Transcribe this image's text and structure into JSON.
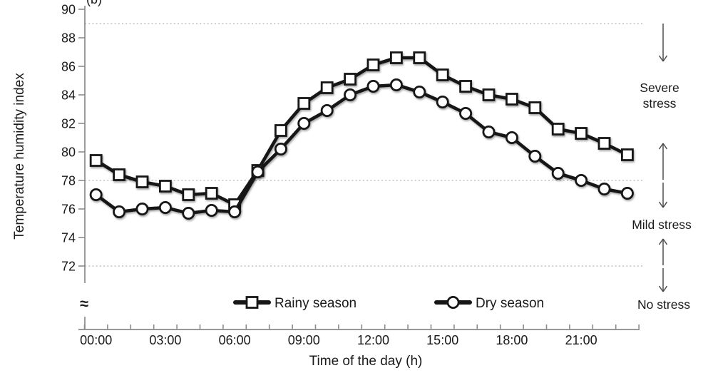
{
  "figure": {
    "corner_label": "(b)",
    "axis_break_symbol": "≈"
  },
  "chart_data": {
    "type": "line",
    "title": "",
    "xlabel": "Time of the day (h)",
    "ylabel": "Temperature humidity index",
    "ylim": [
      72,
      90
    ],
    "yticks": [
      72,
      74,
      76,
      78,
      80,
      82,
      84,
      86,
      88,
      90
    ],
    "threshold_gridlines": [
      89,
      78,
      72
    ],
    "grid": "dotted horizontal lines at THI thresholds",
    "legend_position": "bottom",
    "x_hours": [
      0,
      1,
      2,
      3,
      4,
      5,
      6,
      7,
      8,
      9,
      10,
      11,
      12,
      13,
      14,
      15,
      16,
      17,
      18,
      19,
      20,
      21,
      22,
      23
    ],
    "xtick_hours": [
      0,
      3,
      6,
      9,
      12,
      15,
      18,
      21
    ],
    "xtick_labels": [
      "00:00",
      "03:00",
      "06:00",
      "09:00",
      "12:00",
      "15:00",
      "18:00",
      "21:00"
    ],
    "series": [
      {
        "name": "Rainy season",
        "marker": "square",
        "color": "#161616",
        "values": [
          79.4,
          78.4,
          77.9,
          77.6,
          77.0,
          77.1,
          76.3,
          78.7,
          81.5,
          83.4,
          84.5,
          85.1,
          86.1,
          86.6,
          86.6,
          85.4,
          84.6,
          84.0,
          83.7,
          83.1,
          81.6,
          81.3,
          80.6,
          79.8
        ]
      },
      {
        "name": "Dry season",
        "marker": "circle",
        "color": "#161616",
        "values": [
          77.0,
          75.8,
          76.0,
          76.1,
          75.7,
          75.9,
          75.8,
          78.6,
          80.2,
          82.0,
          82.9,
          84.0,
          84.6,
          84.7,
          84.2,
          83.5,
          82.7,
          81.4,
          81.0,
          79.7,
          78.5,
          78.0,
          77.4,
          77.1
        ]
      }
    ],
    "stress_zones": [
      {
        "label": "Severe stress"
      },
      {
        "label": "Mild stress"
      },
      {
        "label": "No stress"
      }
    ],
    "colors": {
      "line": "#161616",
      "marker_fill": "#ffffff",
      "axis": "#8a8a8a",
      "gridline": "#b3b3b3",
      "arrow": "#4d4d4d",
      "text": "#1a1a1a"
    }
  }
}
